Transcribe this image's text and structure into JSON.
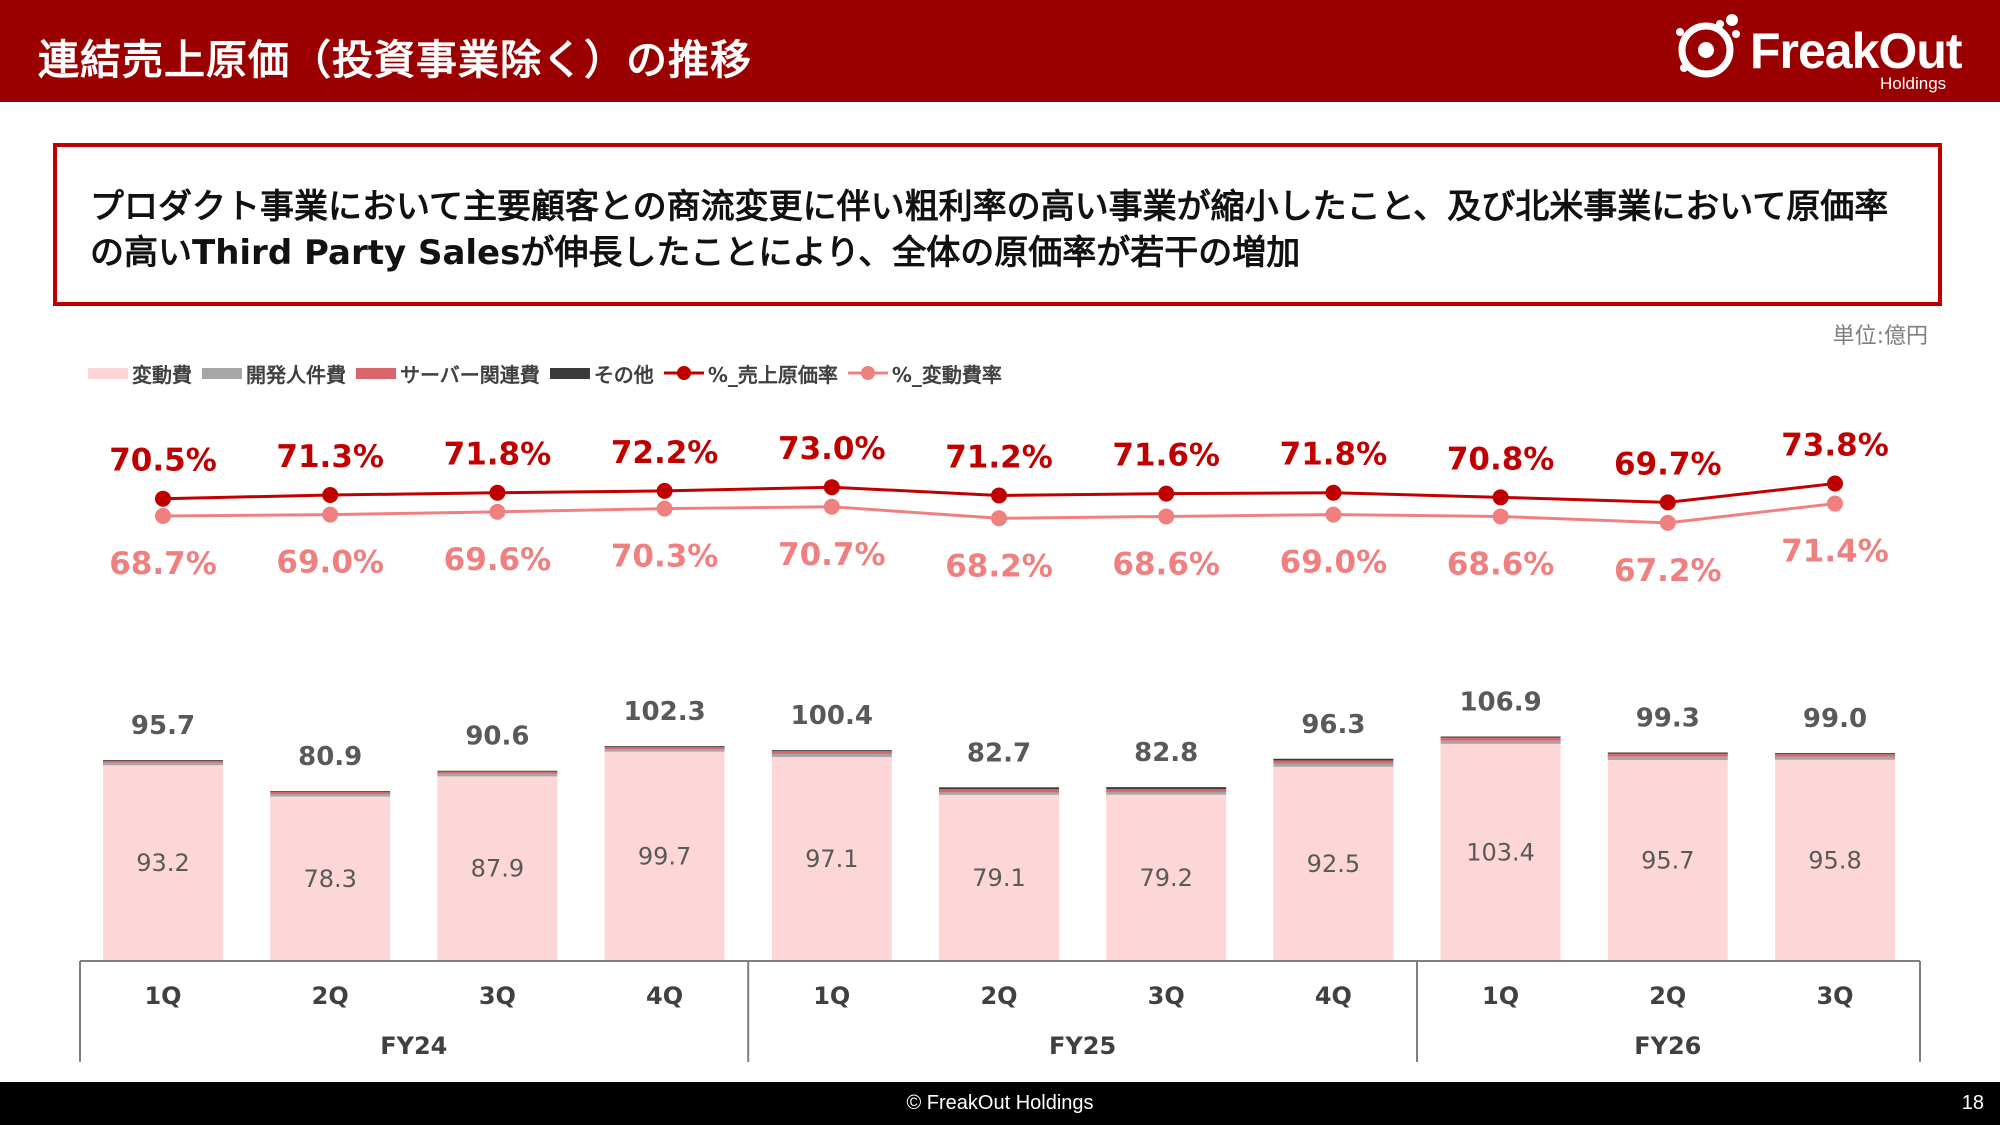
{
  "header": {
    "title": "連結売上原価（投資事業除く）の推移",
    "logo_main": "FreakOut",
    "logo_sub": "Holdings"
  },
  "message": "プロダクト事業において主要顧客との商流変更に伴い粗利率の高い事業が縮小したこと、及び北米事業において原価率の高いThird Party Salesが伸長したことにより、全体の原価率が若干の増加",
  "unit_label": "単位:億円",
  "legend": [
    {
      "label": "変動費",
      "kind": "bar",
      "color": "#fdd7d7"
    },
    {
      "label": "開発人件費",
      "kind": "bar",
      "color": "#a6a6a6"
    },
    {
      "label": "サーバー関連費",
      "kind": "bar",
      "color": "#d9666b"
    },
    {
      "label": "その他",
      "kind": "bar",
      "color": "#3a3a3a"
    },
    {
      "label": "%_売上原価率",
      "kind": "line",
      "color": "#c00000"
    },
    {
      "label": "%_変動費率",
      "kind": "line",
      "color": "#f08080"
    }
  ],
  "chart_data": {
    "type": "bar",
    "stacked": true,
    "categories": [
      "1Q",
      "2Q",
      "3Q",
      "4Q",
      "1Q",
      "2Q",
      "3Q",
      "4Q",
      "1Q",
      "2Q",
      "3Q"
    ],
    "groups": [
      {
        "label": "FY24",
        "quarters": 4
      },
      {
        "label": "FY25",
        "quarters": 4
      },
      {
        "label": "FY26",
        "quarters": 3
      }
    ],
    "totals": [
      95.7,
      80.9,
      90.6,
      102.3,
      100.4,
      82.7,
      82.8,
      96.3,
      106.9,
      99.3,
      99.0
    ],
    "series": [
      {
        "name": "変動費",
        "values": [
          93.2,
          78.3,
          87.9,
          99.7,
          97.1,
          79.1,
          79.2,
          92.5,
          103.4,
          95.7,
          95.8
        ]
      },
      {
        "name": "開発人件費",
        "values": [
          1.3,
          1.2,
          1.3,
          1.2,
          1.5,
          1.2,
          1.3,
          1.5,
          1.5,
          1.6,
          1.5
        ]
      },
      {
        "name": "サーバー関連費",
        "values": [
          0.8,
          1.0,
          1.0,
          1.0,
          1.3,
          1.5,
          1.4,
          1.5,
          1.5,
          1.4,
          1.2
        ]
      },
      {
        "name": "その他",
        "values": [
          0.4,
          0.4,
          0.4,
          0.4,
          0.5,
          0.9,
          0.9,
          0.8,
          0.5,
          0.6,
          0.5
        ]
      }
    ],
    "lines": [
      {
        "name": "%_売上原価率",
        "labels": [
          "70.5%",
          "71.3%",
          "71.8%",
          "72.2%",
          "73.0%",
          "71.2%",
          "71.6%",
          "71.8%",
          "70.8%",
          "69.7%",
          "73.8%"
        ],
        "values": [
          70.5,
          71.3,
          71.8,
          72.2,
          73.0,
          71.2,
          71.6,
          71.8,
          70.8,
          69.7,
          73.8
        ]
      },
      {
        "name": "%_変動費率",
        "labels": [
          "68.7%",
          "69.0%",
          "69.6%",
          "70.3%",
          "70.7%",
          "68.2%",
          "68.6%",
          "69.0%",
          "68.6%",
          "67.2%",
          "71.4%"
        ],
        "values": [
          68.7,
          69.0,
          69.6,
          70.3,
          70.7,
          68.2,
          68.6,
          69.0,
          68.6,
          67.2,
          71.4
        ]
      }
    ],
    "ylim": [
      0,
      110
    ],
    "xlabel": "",
    "ylabel": "",
    "colors": {
      "variable": "#fdd7d7",
      "dev": "#a6a6a6",
      "server": "#d9666b",
      "other": "#3a3a3a",
      "cost_rate": "#c00000",
      "variable_rate": "#f08080"
    }
  },
  "footer": {
    "copyright": "© FreakOut Holdings",
    "page": "18"
  }
}
